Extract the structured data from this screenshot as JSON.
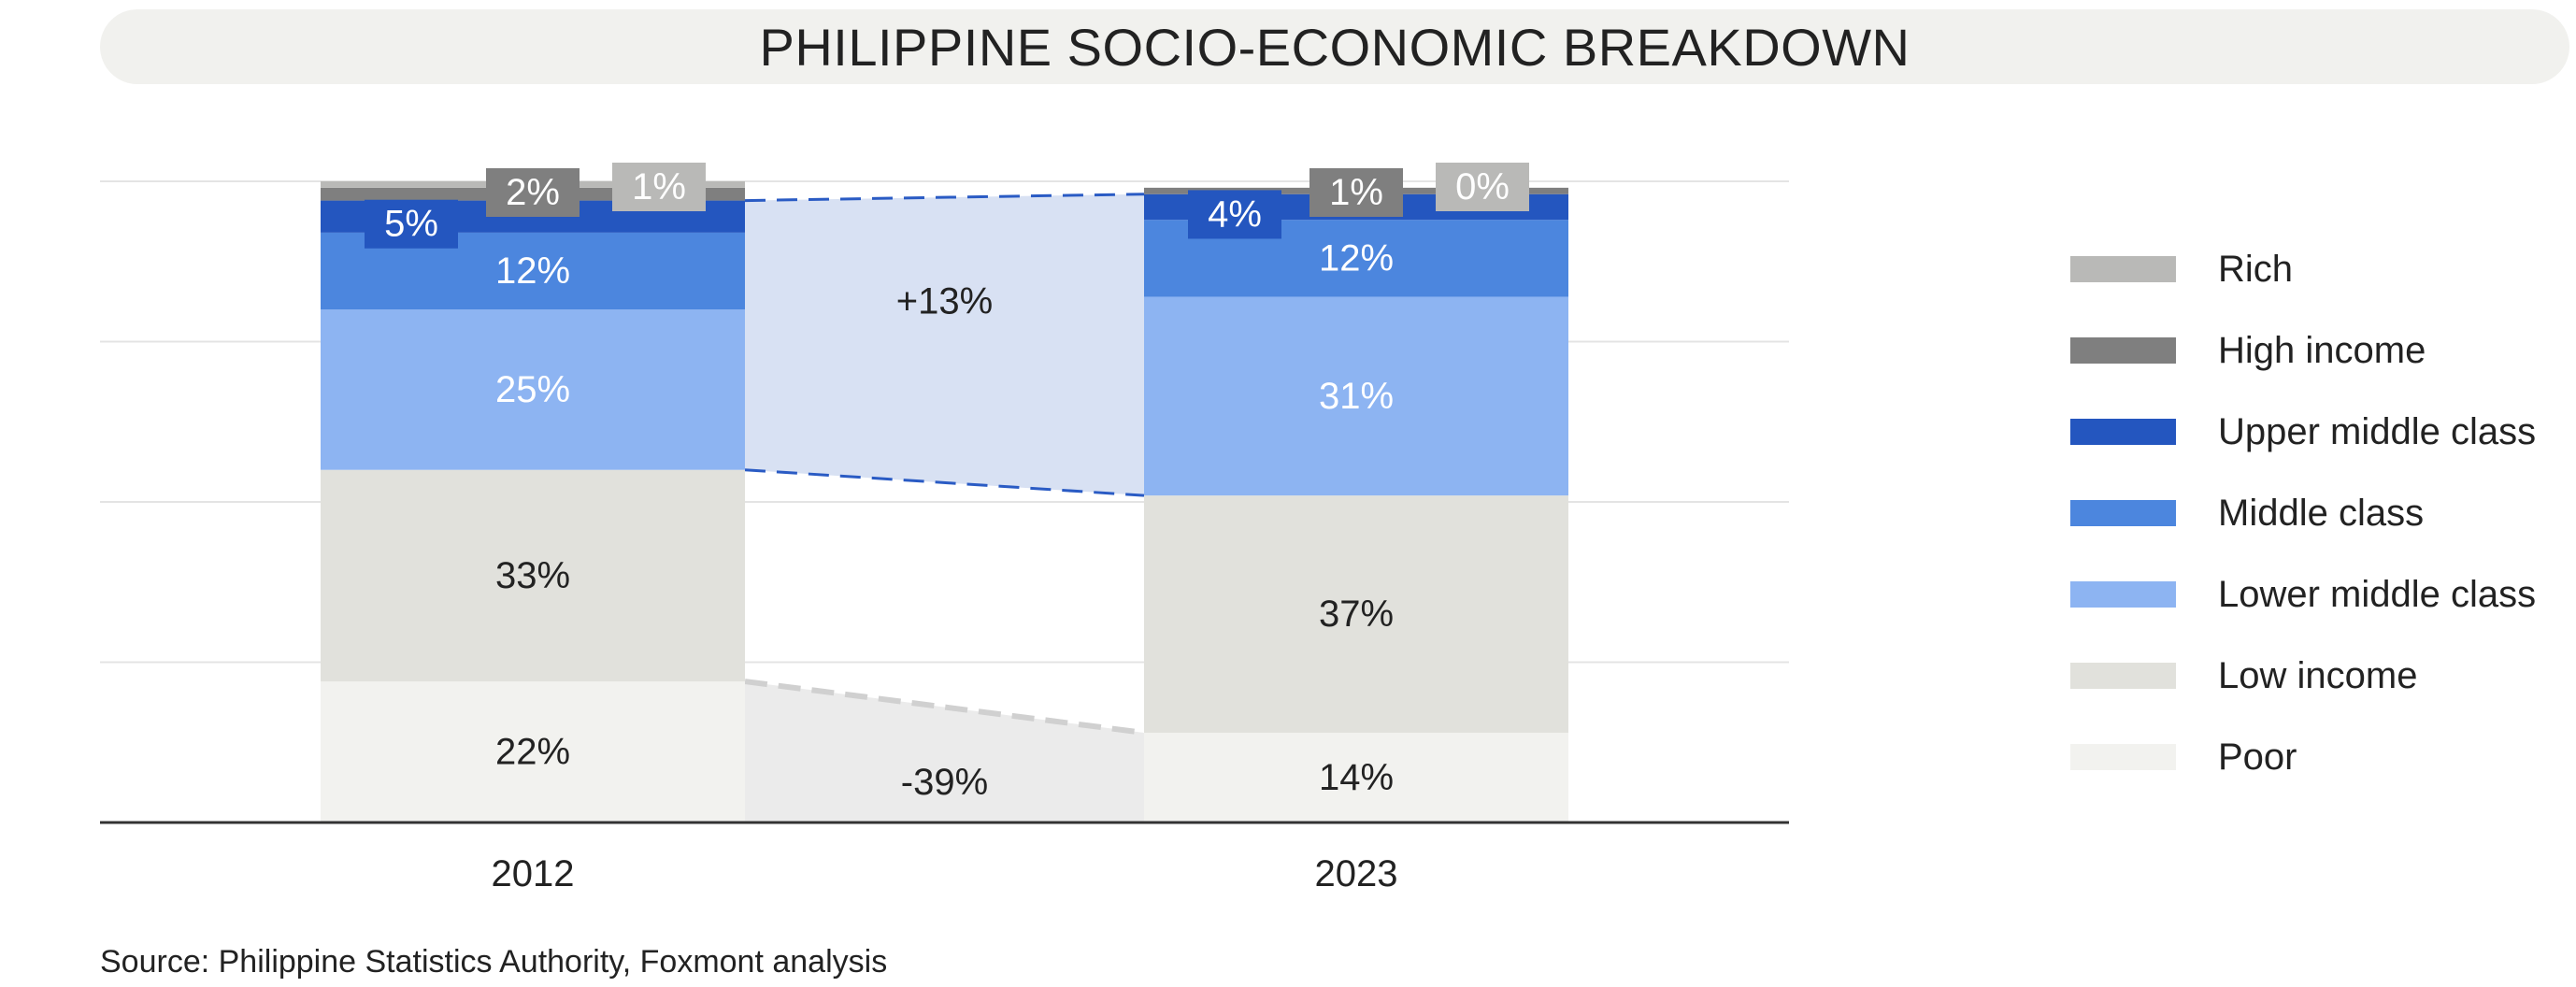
{
  "title": "PHILIPPINE SOCIO-ECONOMIC BREAKDOWN",
  "source": "Source: Philippine Statistics Authority, Foxmont analysis",
  "colors": {
    "Rich": "#b9b9b7",
    "High income": "#7f7f7f",
    "Upper middle class": "#2456bf",
    "Middle class": "#4c86de",
    "Lower middle class": "#8db4f2",
    "Low income": "#e1e1dc",
    "Poor": "#f2f2ef",
    "middle_band": "#d8e1f3",
    "poor_band": "#ebebeb",
    "middle_dash": "#2a5bc4",
    "poor_dash": "#d0d0d0"
  },
  "chart_data": {
    "type": "stacked-bar",
    "categories": [
      "2012",
      "2023"
    ],
    "series": [
      {
        "name": "Poor",
        "values": [
          22,
          14
        ],
        "labels": [
          "22%",
          "14%"
        ]
      },
      {
        "name": "Low income",
        "values": [
          33,
          37
        ],
        "labels": [
          "33%",
          "37%"
        ]
      },
      {
        "name": "Lower middle class",
        "values": [
          25,
          31
        ],
        "labels": [
          "25%",
          "31%"
        ]
      },
      {
        "name": "Middle class",
        "values": [
          12,
          12
        ],
        "labels": [
          "12%",
          "12%"
        ]
      },
      {
        "name": "Upper middle class",
        "values": [
          5,
          4
        ],
        "labels": [
          "5%",
          "4%"
        ]
      },
      {
        "name": "High income",
        "values": [
          2,
          1
        ],
        "labels": [
          "2%",
          "1%"
        ]
      },
      {
        "name": "Rich",
        "values": [
          1,
          0
        ],
        "labels": [
          "1%",
          "0%"
        ]
      }
    ],
    "annotations": [
      {
        "label": "+13%",
        "group": "middle"
      },
      {
        "label": "-39%",
        "group": "poor"
      }
    ],
    "legend": [
      "Rich",
      "High income",
      "Upper middle class",
      "Middle class",
      "Lower middle class",
      "Low income",
      "Poor"
    ],
    "ylim": [
      0,
      100
    ],
    "grid": true,
    "legend_position": "right"
  }
}
